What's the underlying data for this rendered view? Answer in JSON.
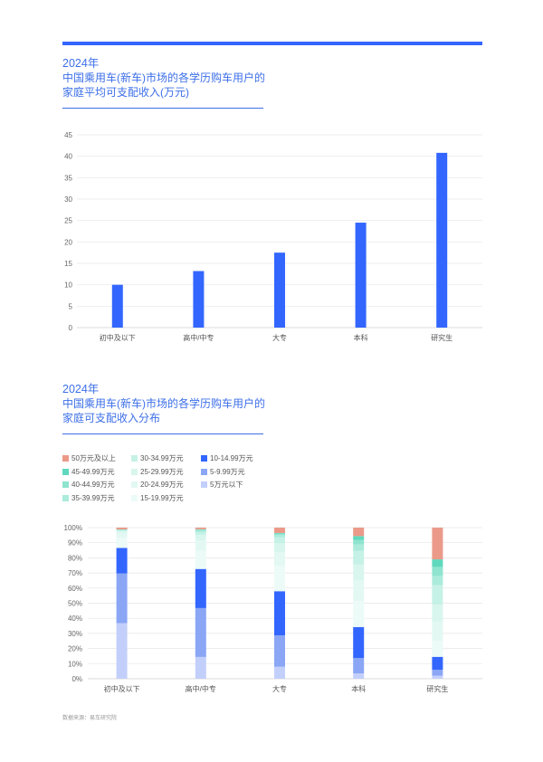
{
  "section1": {
    "year": "2024年",
    "title_line1": "中国乘用车(新车)市场的各学历购车用户的",
    "title_line2": "家庭平均可支配收入(万元)"
  },
  "section2": {
    "year": "2024年",
    "title_line1": "中国乘用车(新车)市场的各学历购车用户的",
    "title_line2": "家庭可支配收入分布"
  },
  "source": "数据来源：易车研究院",
  "colors": {
    "accent": "#3366ff",
    "title": "#3d6fe8",
    "grid": "#e6e6e6"
  },
  "chart_data": [
    {
      "type": "bar",
      "categories": [
        "初中及以下",
        "高中/中专",
        "大专",
        "本科",
        "研究生"
      ],
      "values": [
        10,
        13.2,
        17.5,
        24.5,
        40.8
      ],
      "ylim": [
        0,
        45
      ],
      "yticks": [
        "0",
        "5",
        "10",
        "15",
        "20",
        "25",
        "30",
        "35",
        "40",
        "45"
      ],
      "grid": true,
      "color": "#3366ff"
    },
    {
      "type": "bar",
      "stacked": true,
      "categories": [
        "初中及以下",
        "高中/中专",
        "大专",
        "本科",
        "研究生"
      ],
      "yticks": [
        "0%",
        "10%",
        "20%",
        "30%",
        "40%",
        "50%",
        "60%",
        "70%",
        "80%",
        "90%",
        "100%"
      ],
      "ylim": [
        0,
        100
      ],
      "grid": true,
      "legend_placement": "top-left",
      "series": [
        {
          "name": "5万元以下",
          "color": "#c3cffb",
          "values": [
            37,
            14.5,
            8,
            3.5,
            2
          ]
        },
        {
          "name": "5-9.99万元",
          "color": "#8aa6f5",
          "values": [
            33,
            32.5,
            21,
            10,
            4
          ]
        },
        {
          "name": "10-14.99万元",
          "color": "#3366ff",
          "values": [
            17,
            26,
            29.5,
            20,
            8.5
          ]
        },
        {
          "name": "15-19.99万元",
          "color": "#ecfbf7",
          "values": [
            7,
            12,
            17,
            17,
            10.5
          ]
        },
        {
          "name": "20-24.99万元",
          "color": "#e3f8f2",
          "values": [
            3,
            7,
            9,
            13.5,
            13
          ]
        },
        {
          "name": "25-29.99万元",
          "color": "#d8f6ee",
          "values": [
            1.2,
            3.5,
            6,
            10,
            11
          ]
        },
        {
          "name": "30-34.99万元",
          "color": "#c6f1e6",
          "values": [
            0.5,
            2,
            4,
            9,
            13
          ]
        },
        {
          "name": "35-39.99万元",
          "color": "#abebdc",
          "values": [
            0.3,
            1,
            1.5,
            4,
            6
          ]
        },
        {
          "name": "40-44.99万元",
          "color": "#8ee4cf",
          "values": [
            0.2,
            0.6,
            1,
            3,
            6
          ]
        },
        {
          "name": "45-49.99万元",
          "color": "#5fd9bd",
          "values": [
            0.1,
            0.3,
            0.4,
            2.5,
            5
          ]
        },
        {
          "name": "50万元及以上",
          "color": "#eb9a8a",
          "values": [
            1.2,
            1.1,
            3.6,
            5.5,
            21
          ]
        }
      ],
      "legend_order": [
        "50万元及以上",
        "30-34.99万元",
        "10-14.99万元",
        "45-49.99万元",
        "25-29.99万元",
        "5-9.99万元",
        "40-44.99万元",
        "20-24.99万元",
        "5万元以下",
        "35-39.99万元",
        "15-19.99万元"
      ]
    }
  ]
}
